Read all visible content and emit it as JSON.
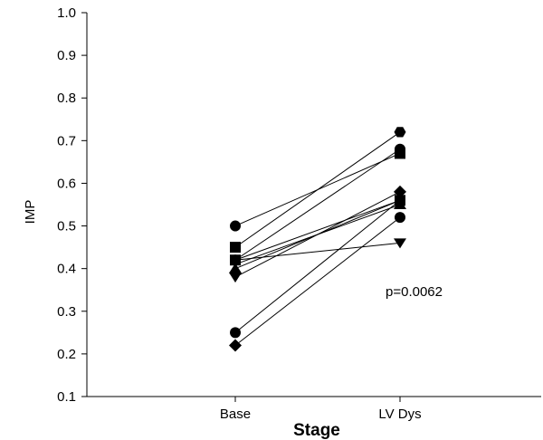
{
  "chart_data": {
    "type": "line",
    "title": "",
    "xlabel": "Stage",
    "ylabel": "IMP",
    "categories": [
      "Base",
      "LV Dys"
    ],
    "ylim": [
      0.1,
      1.0
    ],
    "yticks": [
      "0.1",
      "0.2",
      "0.3",
      "0.4",
      "0.5",
      "0.6",
      "0.7",
      "0.8",
      "0.9",
      "1.0"
    ],
    "annotation": "p=0.0062",
    "legend": "none",
    "grid": false,
    "series": [
      {
        "marker": "circle",
        "values": [
          0.5,
          0.67
        ]
      },
      {
        "marker": "square",
        "values": [
          0.45,
          0.72
        ]
      },
      {
        "marker": "circle",
        "values": [
          0.42,
          0.68
        ]
      },
      {
        "marker": "triangle-up",
        "values": [
          0.41,
          0.55
        ]
      },
      {
        "marker": "triangle-up",
        "values": [
          0.4,
          0.56
        ]
      },
      {
        "marker": "triangle-down",
        "values": [
          0.42,
          0.46
        ]
      },
      {
        "marker": "triangle-down",
        "values": [
          0.38,
          0.58
        ]
      },
      {
        "marker": "square",
        "values": [
          0.42,
          0.56
        ]
      },
      {
        "marker": "circle",
        "values": [
          0.25,
          0.56
        ]
      },
      {
        "marker": "diamond",
        "values": [
          0.22,
          0.52
        ]
      }
    ],
    "markers_rendered": {
      "base": [
        {
          "y": 0.5,
          "shape": "circle"
        },
        {
          "y": 0.45,
          "shape": "square"
        },
        {
          "y": 0.42,
          "shape": "circle"
        },
        {
          "y": 0.42,
          "shape": "square"
        },
        {
          "y": 0.4,
          "shape": "triangle-up"
        },
        {
          "y": 0.38,
          "shape": "triangle-down"
        },
        {
          "y": 0.25,
          "shape": "circle"
        },
        {
          "y": 0.22,
          "shape": "diamond"
        }
      ],
      "lvdys": [
        {
          "y": 0.72,
          "shape": "hexagon"
        },
        {
          "y": 0.68,
          "shape": "circle"
        },
        {
          "y": 0.67,
          "shape": "square"
        },
        {
          "y": 0.58,
          "shape": "diamond"
        },
        {
          "y": 0.56,
          "shape": "square"
        },
        {
          "y": 0.56,
          "shape": "circle"
        },
        {
          "y": 0.55,
          "shape": "triangle-up"
        },
        {
          "y": 0.52,
          "shape": "circle"
        },
        {
          "y": 0.46,
          "shape": "triangle-down"
        }
      ]
    }
  }
}
